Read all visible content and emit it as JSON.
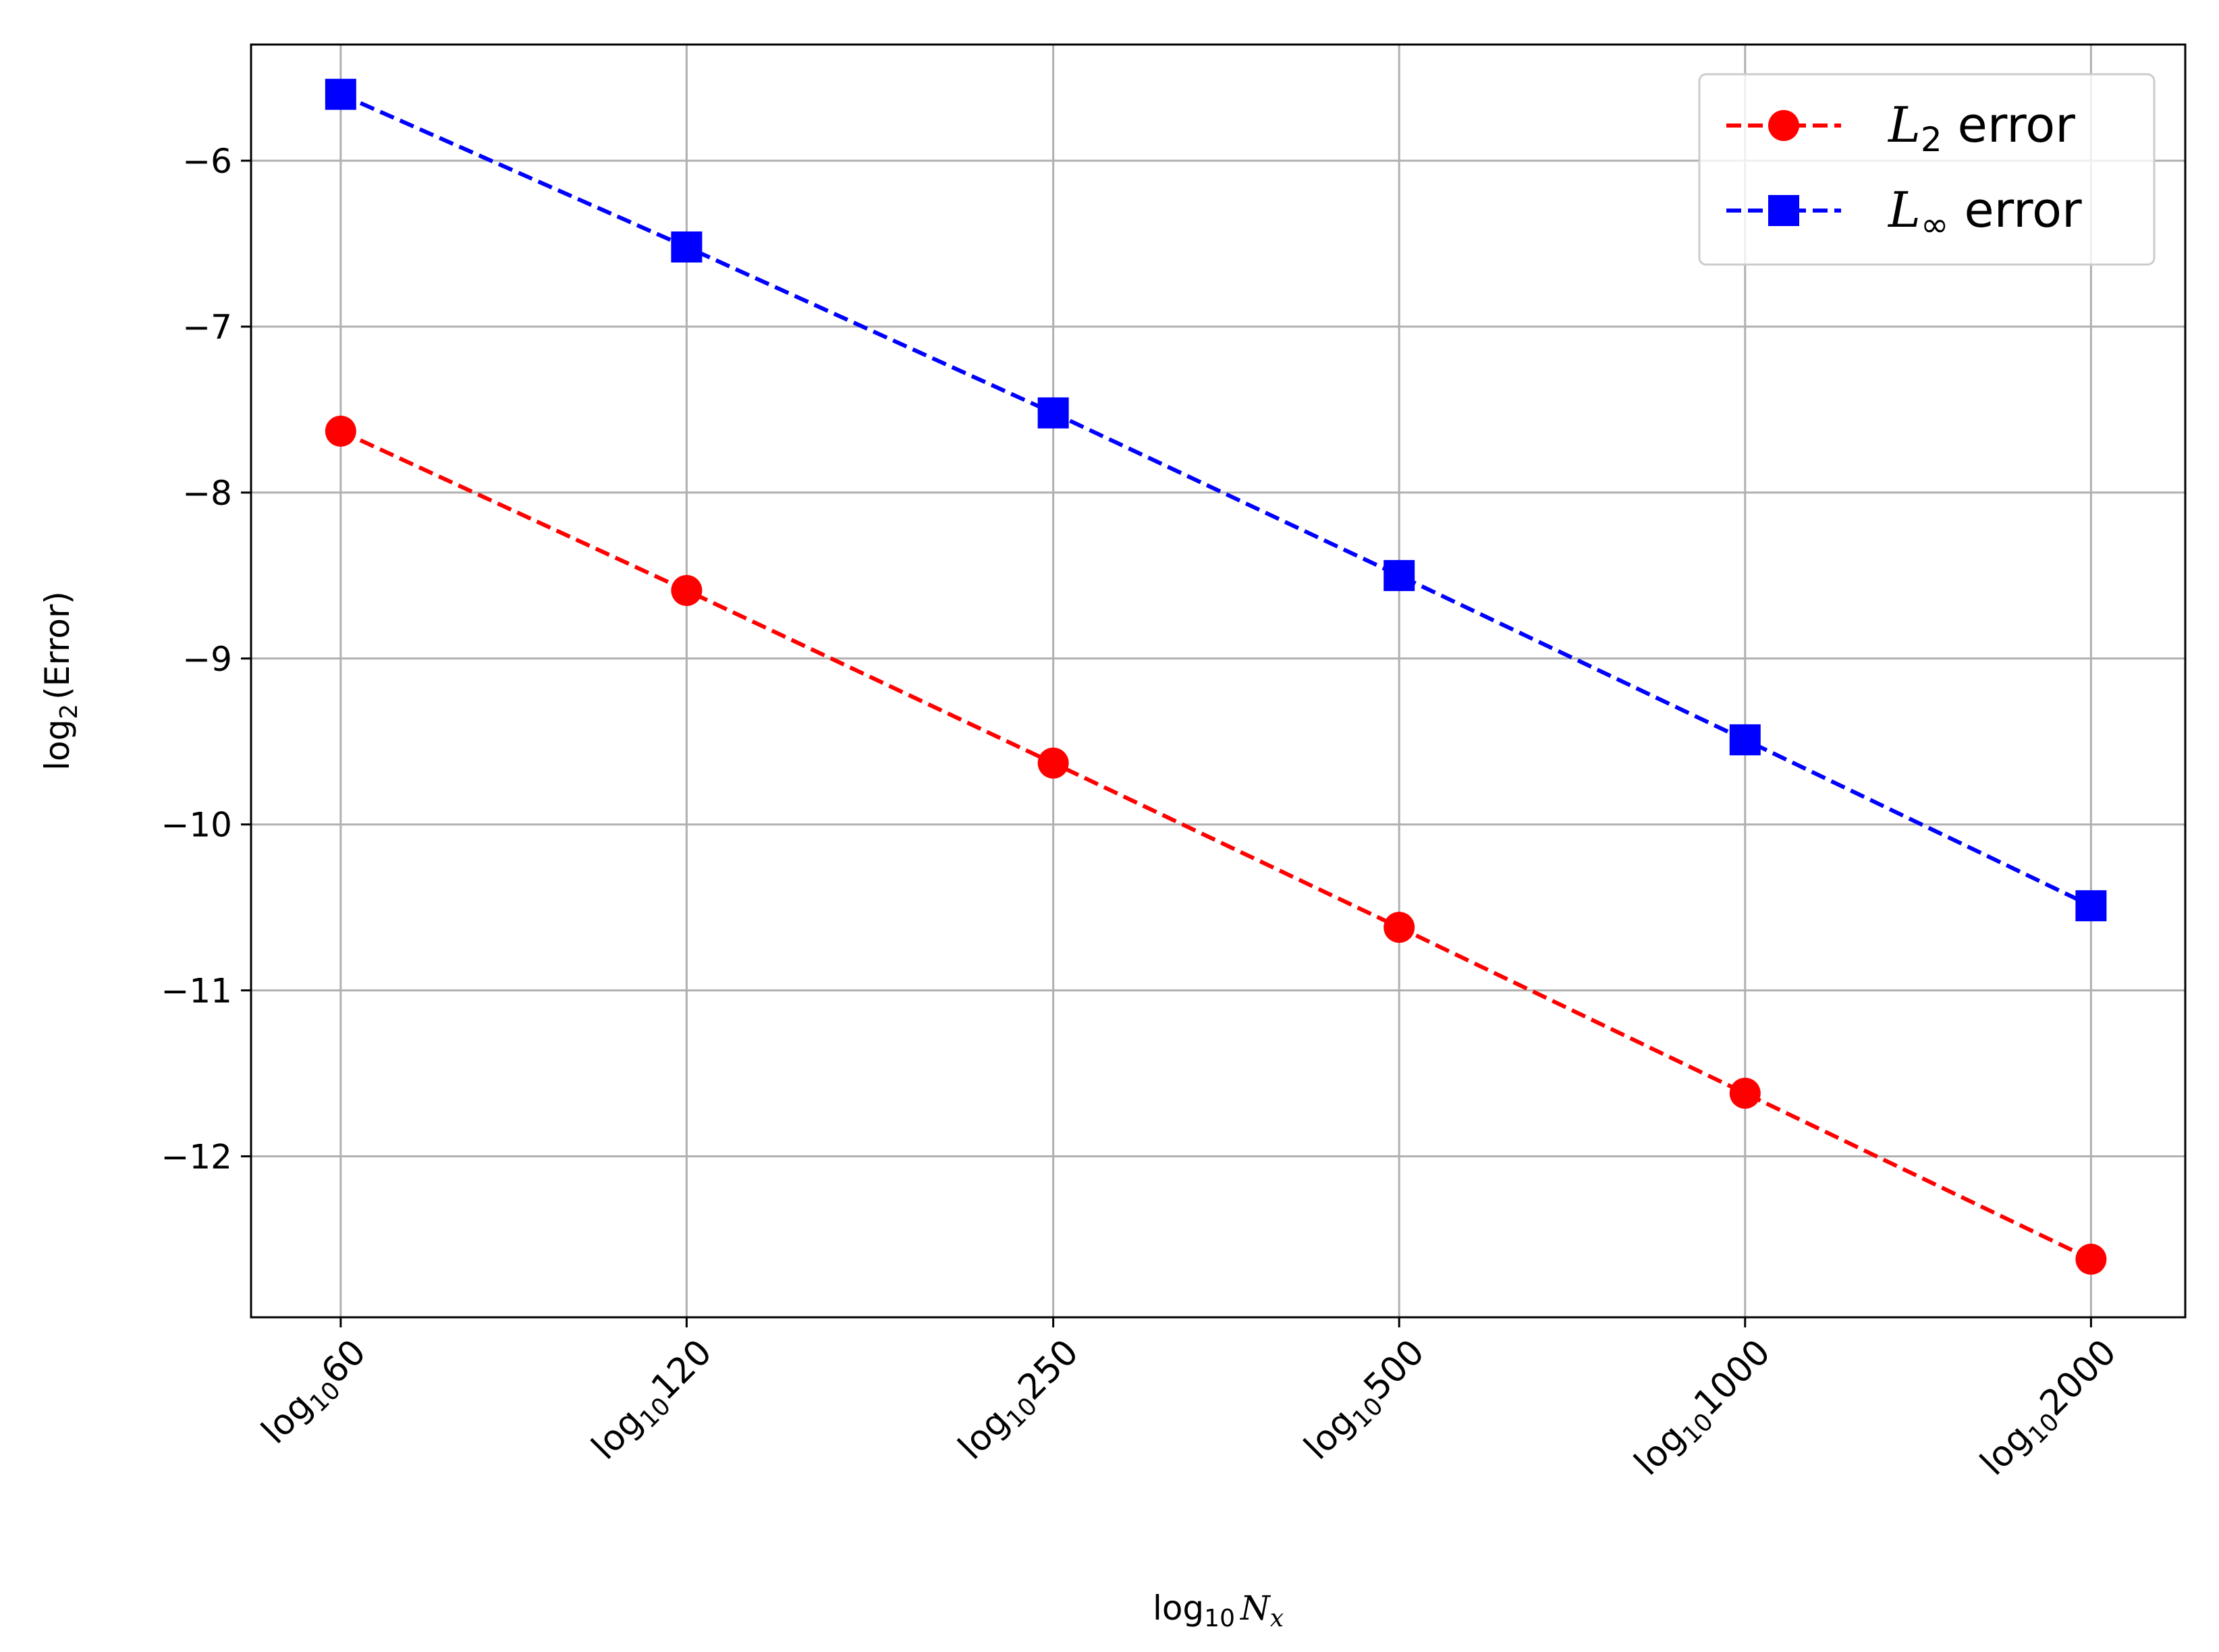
{
  "chart_data": {
    "type": "line",
    "xlabel": "log10 Nx",
    "ylabel": "log2(Error)",
    "categories": [
      "log10 60",
      "log10 120",
      "log10 250",
      "log10 500",
      "log10 1000",
      "log10 2000"
    ],
    "x": [
      1.778,
      2.079,
      2.398,
      2.699,
      3.0,
      3.301
    ],
    "xlim": [
      1.7,
      3.383
    ],
    "ylim": [
      -12.97,
      -5.3
    ],
    "yticks": [
      -12,
      -11,
      -10,
      -9,
      -8,
      -7,
      -6
    ],
    "ytick_labels": [
      "−12",
      "−11",
      "−10",
      "−9",
      "−8",
      "−7",
      "−6"
    ],
    "grid": true,
    "legend_position": "upper right",
    "series": [
      {
        "name": "L2 error",
        "color": "#ff0000",
        "marker": "circle",
        "linestyle": "dashed",
        "values": [
          -7.63,
          -8.59,
          -9.63,
          -10.62,
          -11.62,
          -12.62
        ]
      },
      {
        "name": "L∞ error",
        "color": "#0000ff",
        "marker": "square",
        "linestyle": "dashed",
        "values": [
          -5.6,
          -6.52,
          -7.52,
          -8.5,
          -9.49,
          -10.49
        ]
      }
    ]
  }
}
